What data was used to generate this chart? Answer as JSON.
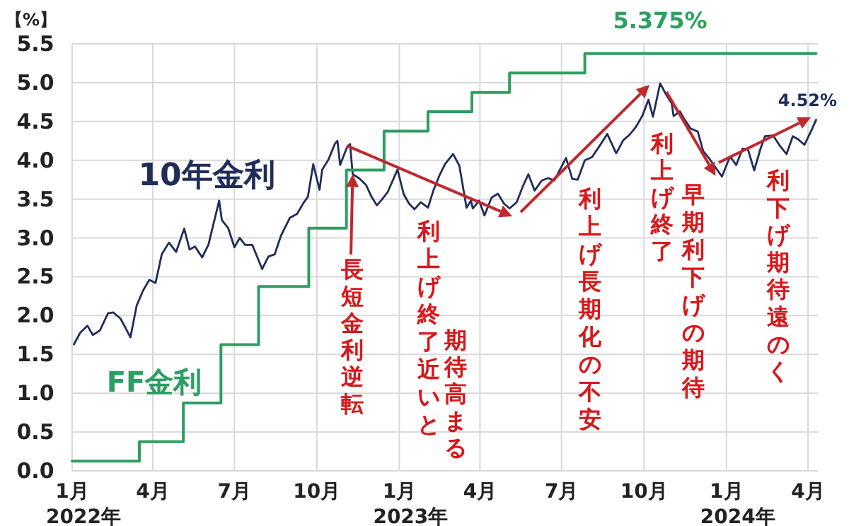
{
  "chart_data": {
    "type": "line",
    "ylabel": "【%】",
    "xlim": [
      "2022-01-01",
      "2024-04-12"
    ],
    "xticks": [
      {
        "value": "2022-01-01",
        "label": "1月"
      },
      {
        "value": "2022-04-01",
        "label": "4月"
      },
      {
        "value": "2022-07-01",
        "label": "7月"
      },
      {
        "value": "2022-10-01",
        "label": "10月"
      },
      {
        "value": "2023-01-01",
        "label": "1月"
      },
      {
        "value": "2023-04-01",
        "label": "4月"
      },
      {
        "value": "2023-07-01",
        "label": "7月"
      },
      {
        "value": "2023-10-01",
        "label": "10月"
      },
      {
        "value": "2024-01-01",
        "label": "1月"
      },
      {
        "value": "2024-04-01",
        "label": "4月"
      }
    ],
    "ylim": [
      0,
      5.5
    ],
    "yticks": [
      {
        "value": 0,
        "label": "0.0"
      },
      {
        "value": 0.5,
        "label": "0.5"
      },
      {
        "value": 1,
        "label": "1.0"
      },
      {
        "value": 1.5,
        "label": "1.5"
      },
      {
        "value": 2,
        "label": "2.0"
      },
      {
        "value": 2.5,
        "label": "2.5"
      },
      {
        "value": 3,
        "label": "3.0"
      },
      {
        "value": 3.5,
        "label": "3.5"
      },
      {
        "value": 4,
        "label": "4.0"
      },
      {
        "value": 4.5,
        "label": "4.5"
      },
      {
        "value": 5,
        "label": "5.0"
      },
      {
        "value": 5.5,
        "label": "5.5"
      }
    ],
    "grid": true,
    "legend": false,
    "marker": "none",
    "line_style": "solid",
    "series": [
      {
        "name": "10年金利",
        "type": "line",
        "color": "#1f2d5a",
        "x": [
          "2022-01-03",
          "2022-01-10",
          "2022-01-18",
          "2022-01-24",
          "2022-02-01",
          "2022-02-10",
          "2022-02-16",
          "2022-02-24",
          "2022-03-07",
          "2022-03-14",
          "2022-03-21",
          "2022-03-28",
          "2022-04-04",
          "2022-04-11",
          "2022-04-19",
          "2022-04-27",
          "2022-05-06",
          "2022-05-12",
          "2022-05-18",
          "2022-05-26",
          "2022-06-02",
          "2022-06-14",
          "2022-06-17",
          "2022-06-24",
          "2022-07-01",
          "2022-07-07",
          "2022-07-13",
          "2022-07-21",
          "2022-08-01",
          "2022-08-08",
          "2022-08-15",
          "2022-08-22",
          "2022-09-01",
          "2022-09-09",
          "2022-09-16",
          "2022-09-21",
          "2022-09-27",
          "2022-10-04",
          "2022-10-07",
          "2022-10-14",
          "2022-10-21",
          "2022-10-24",
          "2022-10-27",
          "2022-11-03",
          "2022-11-07",
          "2022-11-10",
          "2022-11-17",
          "2022-11-25",
          "2022-12-01",
          "2022-12-07",
          "2022-12-13",
          "2022-12-19",
          "2022-12-30",
          "2023-01-06",
          "2023-01-12",
          "2023-01-18",
          "2023-01-25",
          "2023-02-02",
          "2023-02-08",
          "2023-02-15",
          "2023-02-21",
          "2023-03-02",
          "2023-03-09",
          "2023-03-17",
          "2023-03-22",
          "2023-03-24",
          "2023-03-31",
          "2023-04-06",
          "2023-04-14",
          "2023-04-21",
          "2023-04-28",
          "2023-05-04",
          "2023-05-12",
          "2023-05-19",
          "2023-05-25",
          "2023-06-01",
          "2023-06-09",
          "2023-06-16",
          "2023-06-23",
          "2023-07-06",
          "2023-07-13",
          "2023-07-19",
          "2023-07-27",
          "2023-08-04",
          "2023-08-11",
          "2023-08-21",
          "2023-08-31",
          "2023-09-08",
          "2023-09-15",
          "2023-09-22",
          "2023-09-29",
          "2023-10-06",
          "2023-10-11",
          "2023-10-19",
          "2023-10-26",
          "2023-11-01",
          "2023-11-03",
          "2023-11-10",
          "2023-11-15",
          "2023-11-22",
          "2023-11-30",
          "2023-12-06",
          "2023-12-13",
          "2023-12-19",
          "2023-12-27",
          "2024-01-05",
          "2024-01-12",
          "2024-01-19",
          "2024-01-25",
          "2024-02-01",
          "2024-02-08",
          "2024-02-13",
          "2024-02-22",
          "2024-03-01",
          "2024-03-08",
          "2024-03-15",
          "2024-03-21",
          "2024-03-28",
          "2024-04-05",
          "2024-04-10"
        ],
        "values": [
          1.63,
          1.78,
          1.87,
          1.75,
          1.81,
          2.03,
          2.04,
          1.96,
          1.72,
          2.13,
          2.32,
          2.46,
          2.42,
          2.79,
          2.94,
          2.82,
          3.12,
          2.85,
          2.89,
          2.75,
          2.91,
          3.48,
          3.23,
          3.13,
          2.88,
          3.0,
          2.91,
          2.91,
          2.6,
          2.76,
          2.79,
          3.03,
          3.26,
          3.31,
          3.45,
          3.53,
          3.95,
          3.62,
          3.88,
          4.01,
          4.21,
          4.25,
          3.94,
          4.15,
          4.21,
          3.82,
          3.77,
          3.68,
          3.53,
          3.42,
          3.5,
          3.59,
          3.88,
          3.56,
          3.44,
          3.37,
          3.46,
          3.39,
          3.61,
          3.81,
          3.95,
          4.08,
          3.93,
          3.39,
          3.48,
          3.38,
          3.48,
          3.29,
          3.52,
          3.57,
          3.44,
          3.38,
          3.46,
          3.67,
          3.82,
          3.61,
          3.74,
          3.77,
          3.74,
          4.03,
          3.76,
          3.75,
          4.0,
          4.04,
          4.16,
          4.34,
          4.09,
          4.26,
          4.33,
          4.43,
          4.57,
          4.78,
          4.56,
          4.99,
          4.84,
          4.73,
          4.57,
          4.63,
          4.53,
          4.41,
          4.37,
          4.12,
          4.02,
          3.92,
          3.79,
          4.05,
          3.94,
          4.15,
          4.14,
          3.87,
          4.15,
          4.31,
          4.32,
          4.18,
          4.08,
          4.31,
          4.27,
          4.2,
          4.39,
          4.52
        ]
      },
      {
        "name": "FF金利",
        "type": "step",
        "color": "#2e9e62",
        "x": [
          "2022-01-01",
          "2022-03-17",
          "2022-05-05",
          "2022-06-16",
          "2022-07-28",
          "2022-09-22",
          "2022-11-03",
          "2022-12-15",
          "2023-02-02",
          "2023-03-23",
          "2023-05-04",
          "2023-07-27",
          "2024-04-10"
        ],
        "values": [
          0.125,
          0.375,
          0.875,
          1.625,
          2.375,
          3.125,
          3.875,
          4.375,
          4.625,
          4.875,
          5.125,
          5.375,
          5.375
        ]
      }
    ],
    "annotations": [
      {
        "text": "5.375%",
        "x": "2023-10-19",
        "y": 5.375
      },
      {
        "text": "4.52%",
        "x": "2024-04-10",
        "y": 4.52
      },
      "2022年",
      "2023年",
      "2024年",
      {
        "text": "長短金利逆転",
        "x": "2022-11-10",
        "y": 3.82
      },
      "利上げ終了近いと",
      "期待高まる",
      "利上げ長期化の不安",
      "利上げ終了",
      {
        "text": "早期利下げの期待",
        "x": "2023-12-20",
        "y": 3.8
      },
      "利下げ期待遠のく"
    ]
  }
}
